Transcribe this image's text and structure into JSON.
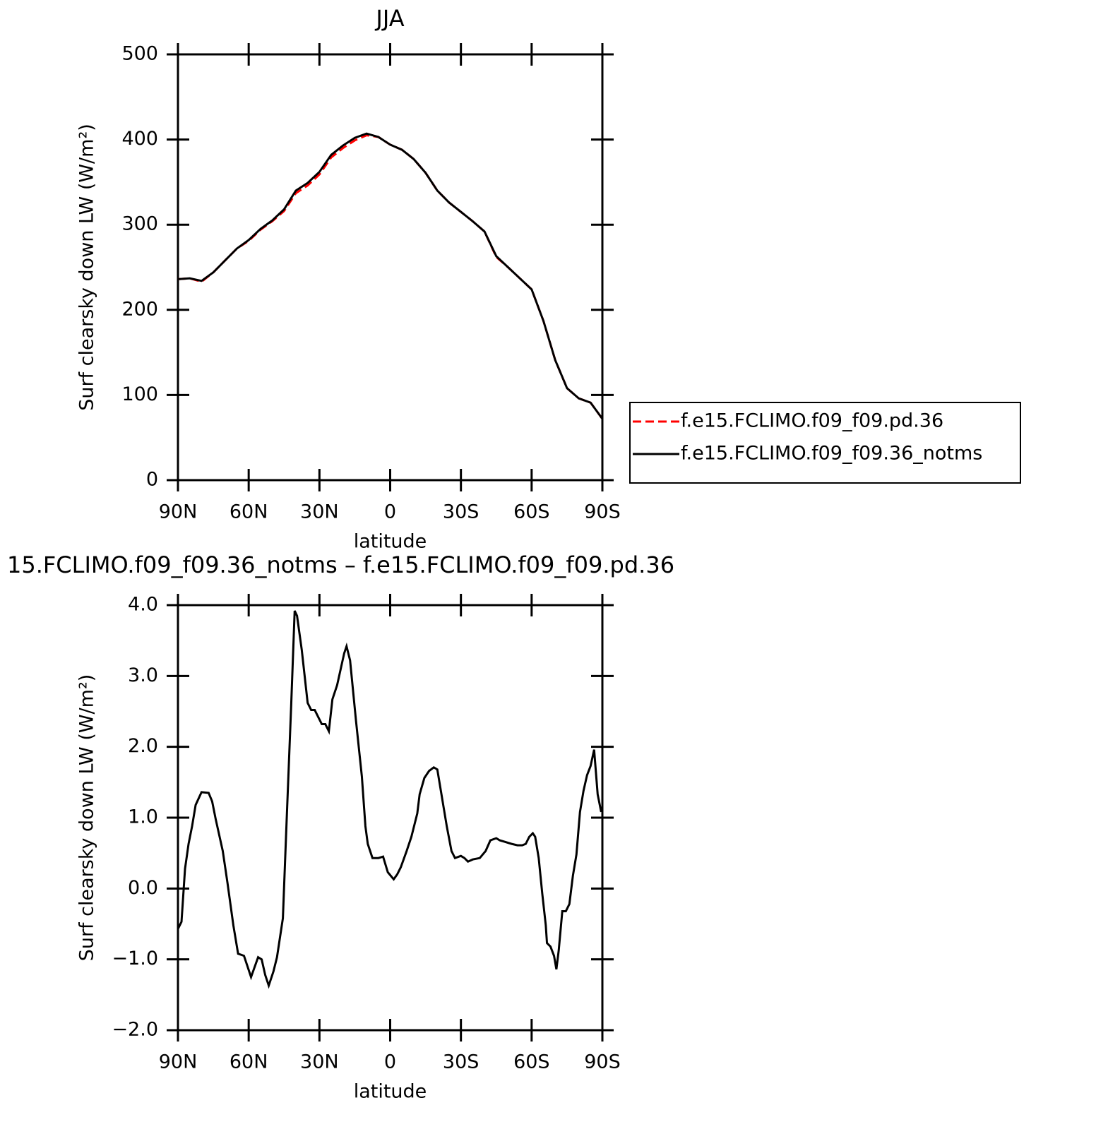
{
  "chart_data": [
    {
      "type": "line",
      "title": "JJA",
      "xlabel": "latitude",
      "ylabel": "Surf clearsky down LW (W/m²)",
      "x": [
        90,
        85,
        80,
        75,
        70,
        65,
        60,
        55,
        50,
        45,
        40,
        35,
        30,
        25,
        20,
        15,
        10,
        5,
        0,
        -5,
        -10,
        -15,
        -20,
        -25,
        -30,
        -35,
        -40,
        -45,
        -50,
        -55,
        -60,
        -65,
        -70,
        -75,
        -80,
        -85,
        -90
      ],
      "series": [
        {
          "name": "f.e15.FCLIMO.f09_f09.pd.36",
          "color": "#ff0000",
          "dash": true,
          "values": [
            236,
            237,
            233,
            244,
            258,
            272,
            281,
            294,
            304,
            316,
            337,
            346,
            359,
            379,
            390,
            399,
            405,
            403,
            394,
            388,
            377,
            361,
            340,
            326,
            315,
            304,
            292,
            262,
            250,
            237,
            224,
            187,
            141,
            108,
            96,
            91,
            72
          ]
        },
        {
          "name": "f.e15.FCLIMO.f09_f09.36_notms",
          "color": "#000000",
          "dash": false,
          "values": [
            236,
            237,
            234,
            244,
            258,
            272,
            282,
            295,
            305,
            318,
            340,
            349,
            362,
            382,
            393,
            402,
            407,
            403,
            394,
            388,
            377,
            361,
            340,
            326,
            315,
            304,
            292,
            263,
            250,
            237,
            224,
            187,
            141,
            108,
            96,
            91,
            72
          ]
        }
      ],
      "xlim": [
        90,
        -90
      ],
      "xticks": [
        {
          "value": 90,
          "label": "90N"
        },
        {
          "value": 60,
          "label": "60N"
        },
        {
          "value": 30,
          "label": "30N"
        },
        0,
        {
          "value": -30,
          "label": "30S"
        },
        {
          "value": -60,
          "label": "60S"
        },
        {
          "value": -90,
          "label": "90S"
        }
      ],
      "ylim": [
        0,
        500
      ],
      "yticks": [
        0,
        100,
        200,
        300,
        400,
        500
      ],
      "legend": "right"
    },
    {
      "type": "line",
      "title": "15.FCLIMO.f09_f09.36_notms – f.e15.FCLIMO.f09_f09.pd.36",
      "xlabel": "latitude",
      "ylabel": "Surf clearsky down LW (W/m²)",
      "x": [
        90,
        88.5,
        87,
        85.5,
        84,
        82.5,
        80,
        77,
        75.5,
        74,
        71,
        69,
        66.5,
        64.5,
        62,
        59,
        56,
        54.5,
        53,
        51.5,
        49.5,
        48,
        45.5,
        44,
        42,
        40.5,
        39.5,
        37.5,
        35,
        33.5,
        32,
        29,
        27.5,
        26,
        24.5,
        22.5,
        19.5,
        18.5,
        17,
        14.5,
        12,
        10.5,
        9.5,
        7.5,
        5,
        3,
        1,
        -1.5,
        -3,
        -4.5,
        -7,
        -9,
        -11.5,
        -12.5,
        -14.5,
        -16.5,
        -18.5,
        -20,
        -21.5,
        -24,
        -26,
        -27.5,
        -30,
        -31.5,
        -33,
        -35,
        -38,
        -40.5,
        -42.5,
        -45,
        -46.5,
        -48.5,
        -51.5,
        -54,
        -56,
        -57.5,
        -59,
        -60.5,
        -61.5,
        -63,
        -64.5,
        -66,
        -66.5,
        -68,
        -69.5,
        -70.5,
        -71.5,
        -73,
        -74.5,
        -76,
        -77.5,
        -79,
        -80.5,
        -82,
        -83.5,
        -85,
        -86.5,
        -88,
        -89.5
      ],
      "series": [
        {
          "name": null,
          "color": "#000000",
          "dash": false,
          "values": [
            -0.57,
            -0.47,
            0.28,
            0.63,
            0.88,
            1.18,
            1.36,
            1.35,
            1.23,
            0.98,
            0.53,
            0.08,
            -0.52,
            -0.92,
            -0.95,
            -1.25,
            -0.97,
            -1.0,
            -1.22,
            -1.37,
            -1.17,
            -0.97,
            -0.42,
            0.88,
            2.57,
            3.92,
            3.85,
            3.37,
            2.62,
            2.52,
            2.52,
            2.32,
            2.32,
            2.22,
            2.67,
            2.87,
            3.32,
            3.42,
            3.22,
            2.37,
            1.58,
            0.88,
            0.63,
            0.43,
            0.43,
            0.45,
            0.23,
            0.13,
            0.2,
            0.3,
            0.53,
            0.73,
            1.06,
            1.33,
            1.56,
            1.66,
            1.71,
            1.68,
            1.38,
            0.88,
            0.53,
            0.43,
            0.46,
            0.43,
            0.38,
            0.41,
            0.43,
            0.53,
            0.68,
            0.71,
            0.68,
            0.66,
            0.63,
            0.61,
            0.61,
            0.63,
            0.73,
            0.78,
            0.73,
            0.43,
            -0.07,
            -0.52,
            -0.77,
            -0.82,
            -0.95,
            -1.14,
            -0.87,
            -0.32,
            -0.32,
            -0.22,
            0.18,
            0.48,
            1.08,
            1.38,
            1.6,
            1.73,
            1.96,
            1.33,
            1.08
          ]
        }
      ],
      "xlim": [
        90,
        -90
      ],
      "xticks": [
        {
          "value": 90,
          "label": "90N"
        },
        {
          "value": 60,
          "label": "60N"
        },
        {
          "value": 30,
          "label": "30N"
        },
        0,
        {
          "value": -30,
          "label": "30S"
        },
        {
          "value": -60,
          "label": "60S"
        },
        {
          "value": -90,
          "label": "90S"
        }
      ],
      "ylim": [
        -2,
        4
      ],
      "yticks": [
        {
          "value": -2,
          "label": "−2.0"
        },
        {
          "value": -1,
          "label": "−1.0"
        },
        {
          "value": 0,
          "label": "0.0"
        },
        {
          "value": 1,
          "label": "1.0"
        },
        {
          "value": 2,
          "label": "2.0"
        },
        {
          "value": 3,
          "label": "3.0"
        },
        {
          "value": 4,
          "label": "4.0"
        }
      ]
    }
  ]
}
